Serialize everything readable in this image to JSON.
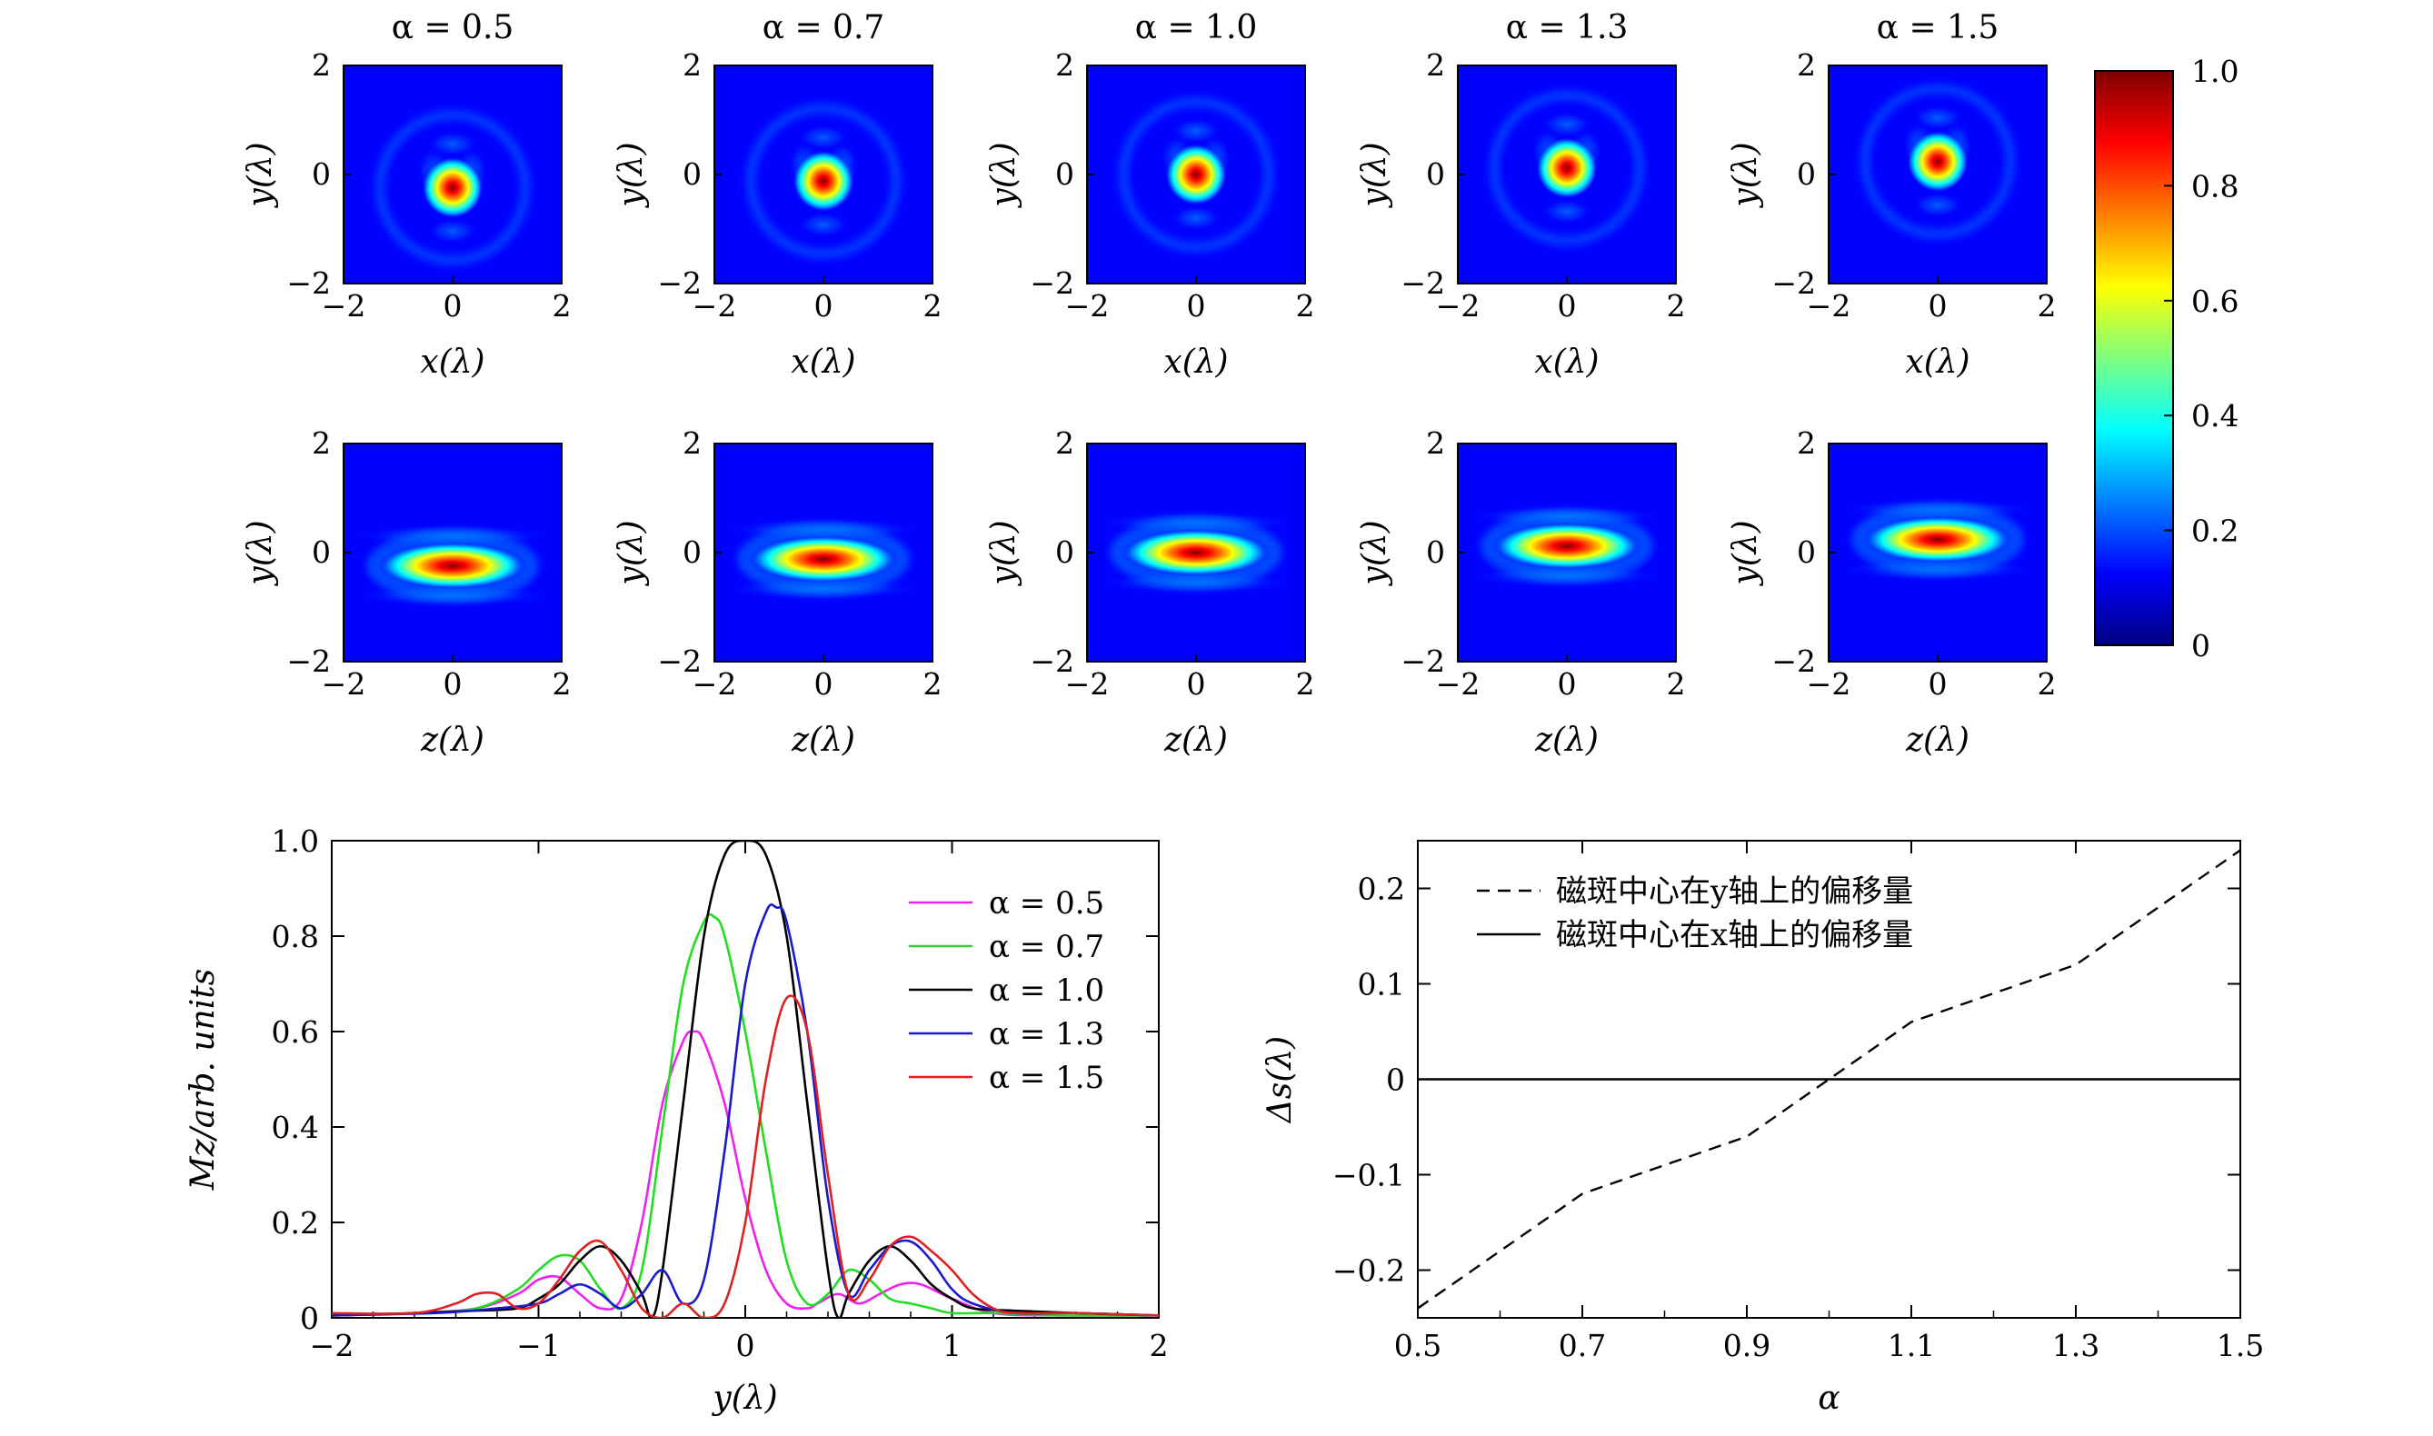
{
  "chart_data": [
    {
      "type": "heatmap",
      "rows": 2,
      "columns": 5,
      "column_titles": [
        "α = 0.5",
        "α = 0.7",
        "α = 1.0",
        "α = 1.3",
        "α = 1.5"
      ],
      "row_xlabels": [
        "x(λ)",
        "z(λ)"
      ],
      "ylabel": "y(λ)",
      "xlim": [
        -2,
        2
      ],
      "ylim": [
        -2,
        2
      ],
      "xticks": [
        "−2",
        "0",
        "2"
      ],
      "yticks": [
        "2",
        "0",
        "−2"
      ],
      "spot_center_y": [
        -0.24,
        -0.12,
        0.0,
        0.12,
        0.24
      ],
      "colormap": [
        "#00007f",
        "#0000ff",
        "#007fff",
        "#00ffff",
        "#7fff7f",
        "#ffff00",
        "#ff7f00",
        "#ff0000",
        "#7f0000"
      ],
      "colorbar": {
        "range": [
          0,
          1.0
        ],
        "ticks": [
          "1.0",
          "0.8",
          "0.6",
          "0.4",
          "0.2",
          "0"
        ]
      }
    },
    {
      "type": "line",
      "xlabel": "y(λ)",
      "ylabel": "Mz/arb. units",
      "xlim": [
        -2,
        2
      ],
      "ylim": [
        0,
        1.0
      ],
      "xticks": [
        "−2",
        "−1",
        "0",
        "1",
        "2"
      ],
      "yticks": [
        "0",
        "0.2",
        "0.4",
        "0.6",
        "0.8",
        "1.0"
      ],
      "legend": "top-right",
      "series": [
        {
          "name": "α = 0.5",
          "color": "#ee22ee",
          "x": [
            -2,
            -1.6,
            -1.3,
            -1.1,
            -1.0,
            -0.9,
            -0.8,
            -0.7,
            -0.6,
            -0.5,
            -0.4,
            -0.3,
            -0.25,
            -0.2,
            -0.1,
            0,
            0.1,
            0.2,
            0.3,
            0.35,
            0.45,
            0.55,
            0.65,
            0.75,
            0.85,
            1.0,
            1.2,
            1.5,
            2
          ],
          "y": [
            0.005,
            0.01,
            0.02,
            0.05,
            0.08,
            0.085,
            0.05,
            0.02,
            0.04,
            0.2,
            0.45,
            0.58,
            0.6,
            0.58,
            0.45,
            0.25,
            0.1,
            0.03,
            0.02,
            0.03,
            0.05,
            0.03,
            0.05,
            0.07,
            0.07,
            0.04,
            0.01,
            0.005,
            0.005
          ]
        },
        {
          "name": "α = 0.7",
          "color": "#22dd22",
          "x": [
            -2,
            -1.6,
            -1.3,
            -1.1,
            -1.0,
            -0.9,
            -0.8,
            -0.7,
            -0.6,
            -0.5,
            -0.4,
            -0.3,
            -0.2,
            -0.15,
            -0.1,
            0,
            0.1,
            0.2,
            0.3,
            0.4,
            0.5,
            0.6,
            0.7,
            0.8,
            0.9,
            1.0,
            1.2,
            1.5,
            2
          ],
          "y": [
            0.005,
            0.01,
            0.02,
            0.06,
            0.1,
            0.13,
            0.12,
            0.06,
            0.02,
            0.1,
            0.4,
            0.7,
            0.83,
            0.84,
            0.8,
            0.6,
            0.35,
            0.12,
            0.03,
            0.05,
            0.1,
            0.08,
            0.04,
            0.03,
            0.02,
            0.01,
            0.01,
            0.005,
            0.005
          ]
        },
        {
          "name": "α = 1.0",
          "color": "#000000",
          "x": [
            -2,
            -1.6,
            -1.3,
            -1.1,
            -1.0,
            -0.9,
            -0.8,
            -0.7,
            -0.6,
            -0.5,
            -0.45,
            -0.4,
            -0.3,
            -0.2,
            -0.1,
            0,
            0.1,
            0.2,
            0.3,
            0.4,
            0.45,
            0.5,
            0.6,
            0.7,
            0.8,
            0.9,
            1.0,
            1.1,
            1.3,
            1.6,
            2
          ],
          "y": [
            0.005,
            0.01,
            0.015,
            0.02,
            0.04,
            0.07,
            0.12,
            0.15,
            0.12,
            0.05,
            0.0,
            0.1,
            0.45,
            0.8,
            0.97,
            1.0,
            0.97,
            0.8,
            0.45,
            0.1,
            0.0,
            0.05,
            0.12,
            0.15,
            0.12,
            0.07,
            0.04,
            0.02,
            0.015,
            0.01,
            0.005
          ]
        },
        {
          "name": "α = 1.3",
          "color": "#1a1acc",
          "x": [
            -2,
            -1.5,
            -1.2,
            -1.0,
            -0.9,
            -0.8,
            -0.7,
            -0.6,
            -0.5,
            -0.4,
            -0.3,
            -0.2,
            -0.1,
            0,
            0.1,
            0.15,
            0.2,
            0.3,
            0.4,
            0.5,
            0.6,
            0.7,
            0.8,
            0.9,
            1.0,
            1.1,
            1.3,
            1.6,
            2
          ],
          "y": [
            0.005,
            0.01,
            0.02,
            0.03,
            0.05,
            0.07,
            0.05,
            0.02,
            0.05,
            0.1,
            0.03,
            0.08,
            0.35,
            0.7,
            0.85,
            0.86,
            0.83,
            0.6,
            0.25,
            0.05,
            0.1,
            0.15,
            0.16,
            0.12,
            0.06,
            0.03,
            0.01,
            0.01,
            0.005
          ]
        },
        {
          "name": "α = 1.5",
          "color": "#dd2222",
          "x": [
            -2,
            -1.6,
            -1.4,
            -1.3,
            -1.2,
            -1.1,
            -1.0,
            -0.9,
            -0.8,
            -0.7,
            -0.6,
            -0.5,
            -0.4,
            -0.3,
            -0.2,
            -0.1,
            0,
            0.1,
            0.2,
            0.3,
            0.4,
            0.5,
            0.6,
            0.7,
            0.8,
            0.9,
            1.0,
            1.1,
            1.2,
            1.3,
            1.6,
            2
          ],
          "y": [
            0.01,
            0.01,
            0.03,
            0.05,
            0.05,
            0.02,
            0.03,
            0.08,
            0.14,
            0.16,
            0.1,
            0.02,
            0.0,
            0.03,
            0.0,
            0.03,
            0.2,
            0.5,
            0.67,
            0.6,
            0.3,
            0.05,
            0.08,
            0.15,
            0.17,
            0.14,
            0.1,
            0.05,
            0.02,
            0.01,
            0.01,
            0.005
          ]
        }
      ]
    },
    {
      "type": "line",
      "xlabel": "α",
      "ylabel": "Δs(λ)",
      "xlim": [
        0.5,
        1.5
      ],
      "ylim": [
        -0.25,
        0.25
      ],
      "xticks": [
        "0.5",
        "0.7",
        "0.9",
        "1.1",
        "1.3",
        "1.5"
      ],
      "yticks": [
        "0.2",
        "0.1",
        "0",
        "−0.1",
        "−0.2"
      ],
      "legend": "top-left",
      "series": [
        {
          "name": "磁斑中心在y轴上的偏移量",
          "style": "dashed",
          "x": [
            0.5,
            0.7,
            0.9,
            1.0,
            1.1,
            1.3,
            1.5
          ],
          "y": [
            -0.24,
            -0.12,
            -0.06,
            0.0,
            0.06,
            0.12,
            0.24
          ]
        },
        {
          "name": "磁斑中心在x轴上的偏移量",
          "style": "solid",
          "x": [
            0.5,
            1.5
          ],
          "y": [
            0,
            0
          ]
        }
      ]
    }
  ]
}
